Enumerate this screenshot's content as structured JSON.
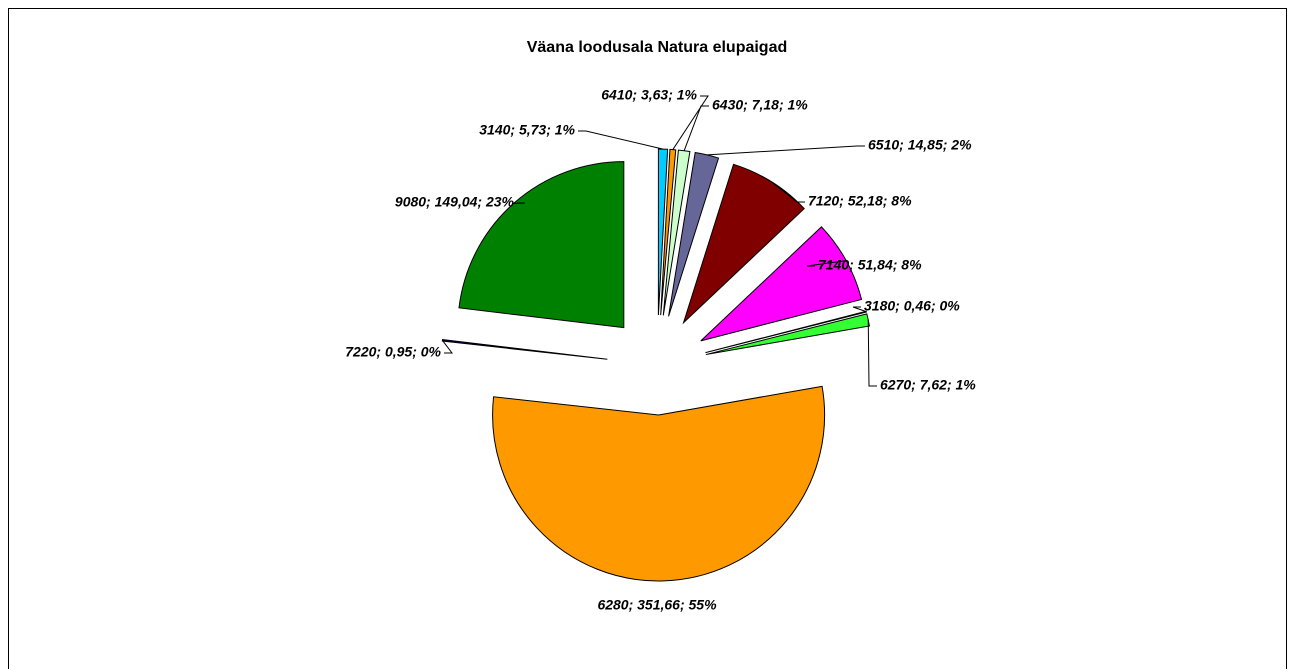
{
  "chart_data": {
    "type": "pie",
    "title": "Väana loodusala Natura elupaigad",
    "values": [
      5.73,
      3.63,
      7.18,
      14.85,
      52.18,
      51.84,
      0.46,
      7.62,
      351.66,
      0.95,
      149.04
    ],
    "value_labels": [
      "3140; 5,73; 1%",
      "6410; 3,63; 1%",
      "6430; 7,18; 1%",
      "6510; 14,85; 2%",
      "7120; 52,18; 8%",
      "7140; 51,84; 8%",
      "3180; 0,46; 0%",
      "6270; 7,62; 1%",
      "6280; 351,66; 55%",
      "7220; 0,95; 0%",
      "9080; 149,04; 23%"
    ],
    "colors": [
      "#00ccff",
      "#ff9900",
      "#ccffcc",
      "#666699",
      "#800000",
      "#ff00ff",
      "#ffff99",
      "#33ff33",
      "#ff9900",
      "#000080",
      "#008000"
    ]
  }
}
